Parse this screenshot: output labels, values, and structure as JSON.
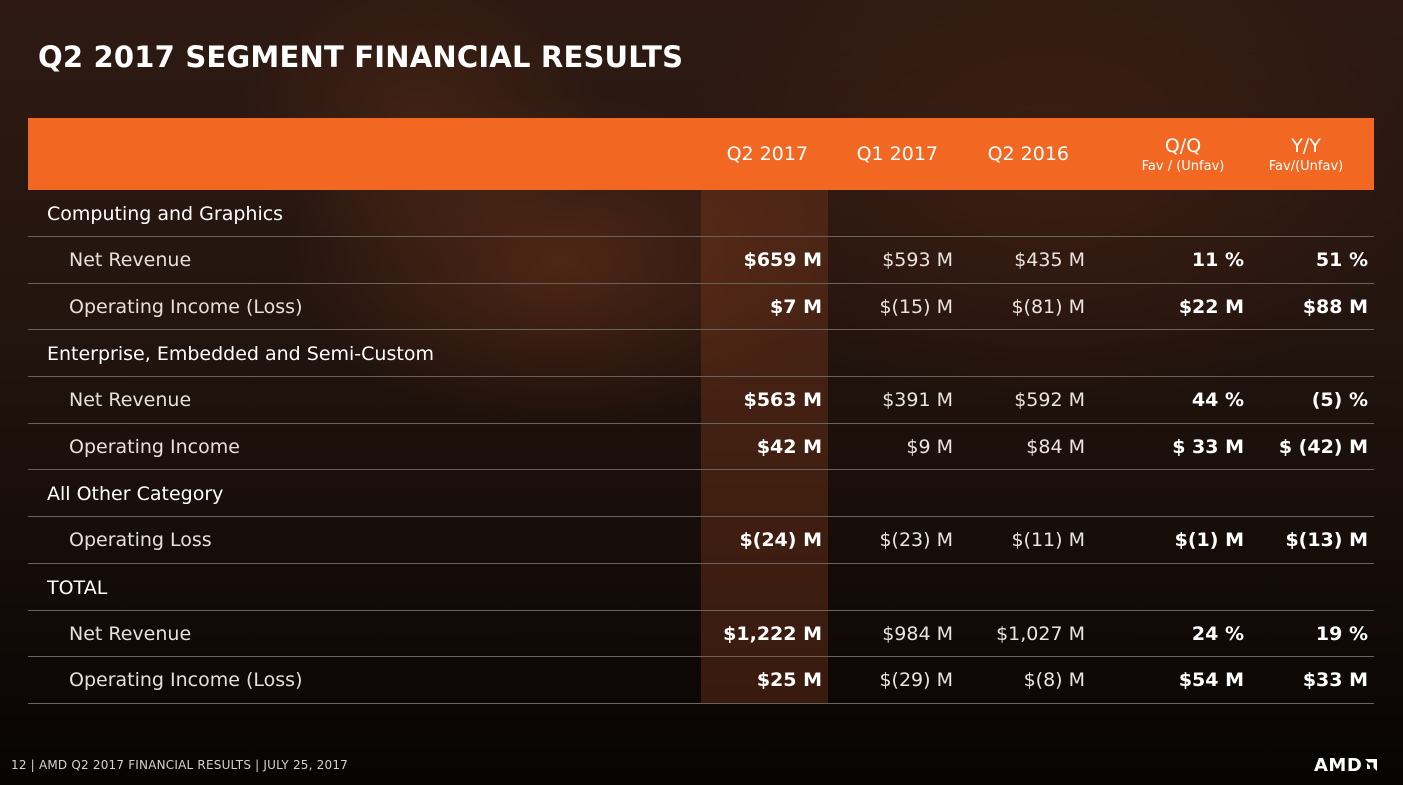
{
  "title": "Q2 2017 SEGMENT FINANCIAL RESULTS",
  "header": {
    "q2_2017": "Q2 2017",
    "q1_2017": "Q1 2017",
    "q2_2016": "Q2 2016",
    "qq": "Q/Q",
    "qq_sub": "Fav / (Unfav)",
    "yy": "Y/Y",
    "yy_sub": "Fav/(Unfav)"
  },
  "sections": [
    {
      "name": "Computing and Graphics",
      "rows": [
        {
          "label": "Net Revenue",
          "q2_2017": "$659 M",
          "q1_2017": "$593 M",
          "q2_2016": "$435 M",
          "qq": "11 %",
          "yy": "51 %"
        },
        {
          "label": "Operating Income (Loss)",
          "q2_2017": "$7 M",
          "q1_2017": "$(15) M",
          "q2_2016": "$(81) M",
          "qq": "$22 M",
          "yy": "$88 M"
        }
      ]
    },
    {
      "name": "Enterprise, Embedded and Semi-Custom",
      "rows": [
        {
          "label": "Net Revenue",
          "q2_2017": "$563 M",
          "q1_2017": "$391 M",
          "q2_2016": "$592 M",
          "qq": "44 %",
          "yy": "(5) %"
        },
        {
          "label": "Operating Income",
          "q2_2017": "$42 M",
          "q1_2017": "$9 M",
          "q2_2016": "$84 M",
          "qq": "$ 33 M",
          "yy": "$ (42) M"
        }
      ]
    },
    {
      "name": "All Other Category",
      "rows": [
        {
          "label": "Operating Loss",
          "q2_2017": "$(24) M",
          "q1_2017": "$(23) M",
          "q2_2016": "$(11) M",
          "qq": "$(1) M",
          "yy": "$(13) M"
        }
      ]
    },
    {
      "name": "TOTAL",
      "rows": [
        {
          "label": "Net Revenue",
          "q2_2017": "$1,222 M",
          "q1_2017": "$984 M",
          "q2_2016": "$1,027 M",
          "qq": "24 %",
          "yy": "19 %"
        },
        {
          "label": "Operating Income (Loss)",
          "q2_2017": "$25 M",
          "q1_2017": "$(29) M",
          "q2_2016": "$(8) M",
          "qq": "$54 M",
          "yy": "$33 M"
        }
      ]
    }
  ],
  "footer": {
    "text": "12  | AMD Q2 2017 FINANCIAL RESULTS |  JULY 25, 2017",
    "logo": "AMD"
  },
  "colors": {
    "header_bg": "#f26722",
    "accent": "#f26722"
  },
  "icons": {
    "logo_mark": "amd-arrow-icon"
  }
}
